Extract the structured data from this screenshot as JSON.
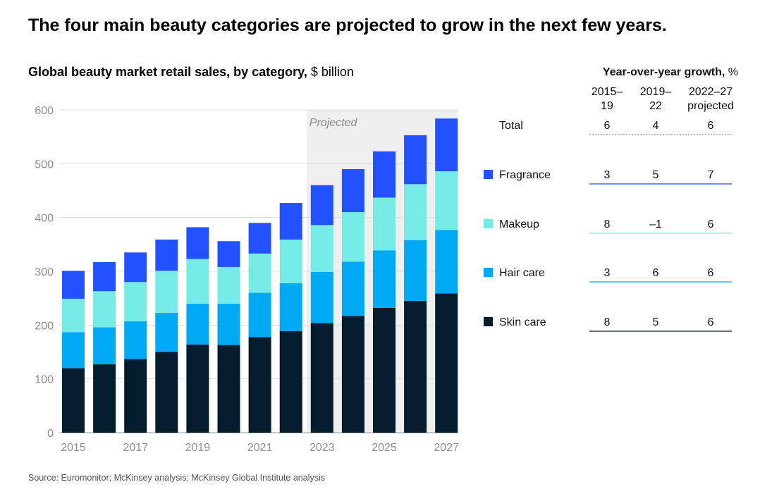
{
  "title": "The four main beauty categories are projected to grow in the next few years.",
  "subtitle_bold": "Global beauty market retail sales, by category,",
  "subtitle_unit": " $ billion",
  "source": "Source: Euromonitor; McKinsey analysis; McKinsey Global Institute analysis",
  "chart_data": {
    "type": "bar",
    "stacked": true,
    "categories": [
      "2015",
      "2016",
      "2017",
      "2018",
      "2019",
      "2020",
      "2021",
      "2022",
      "2023",
      "2024",
      "2025",
      "2026",
      "2027"
    ],
    "x_tick_labels": [
      "2015",
      "2017",
      "2019",
      "2021",
      "2023",
      "2025",
      "2027"
    ],
    "ylim": [
      0,
      600
    ],
    "y_ticks": [
      0,
      100,
      200,
      300,
      400,
      500,
      600
    ],
    "grid": true,
    "projected_label": "Projected",
    "projected_from": "2023",
    "series": [
      {
        "name": "Skin care",
        "color": "#051c2c",
        "values": [
          120,
          127,
          137,
          150,
          164,
          163,
          178,
          189,
          204,
          217,
          232,
          245,
          259
        ]
      },
      {
        "name": "Hair care",
        "color": "#00a9f4",
        "values": [
          67,
          69,
          70,
          73,
          76,
          77,
          82,
          89,
          95,
          101,
          107,
          113,
          118
        ]
      },
      {
        "name": "Makeup",
        "color": "#76ebe5",
        "values": [
          62,
          67,
          73,
          78,
          83,
          68,
          73,
          81,
          87,
          92,
          98,
          104,
          109
        ]
      },
      {
        "name": "Fragrance",
        "color": "#2251ff",
        "values": [
          52,
          54,
          55,
          58,
          59,
          48,
          57,
          68,
          74,
          80,
          86,
          91,
          98
        ]
      }
    ]
  },
  "growth_table": {
    "title_bold": "Year-over-year growth,",
    "title_unit": " %",
    "columns": [
      {
        "line1": "2015–",
        "line2": "19"
      },
      {
        "line1": "2019–",
        "line2": "22"
      },
      {
        "line1": "2022–27",
        "line2": "projected"
      }
    ],
    "rows": [
      {
        "label": "Total",
        "color": "",
        "values": [
          "6",
          "4",
          "6"
        ],
        "line_color": "#8a8a8a",
        "dashed": true
      },
      {
        "label": "Fragrance",
        "color": "#2251ff",
        "values": [
          "3",
          "5",
          "7"
        ],
        "line_color": "#2251ff",
        "dashed": false
      },
      {
        "label": "Makeup",
        "color": "#76ebe5",
        "values": [
          "8",
          "–1",
          "6"
        ],
        "line_color": "#76ebe5",
        "dashed": false
      },
      {
        "label": "Hair care",
        "color": "#00a9f4",
        "values": [
          "3",
          "6",
          "6"
        ],
        "line_color": "#00a9f4",
        "dashed": false
      },
      {
        "label": "Skin care",
        "color": "#051c2c",
        "values": [
          "8",
          "5",
          "6"
        ],
        "line_color": "#051c2c",
        "dashed": false
      }
    ]
  }
}
